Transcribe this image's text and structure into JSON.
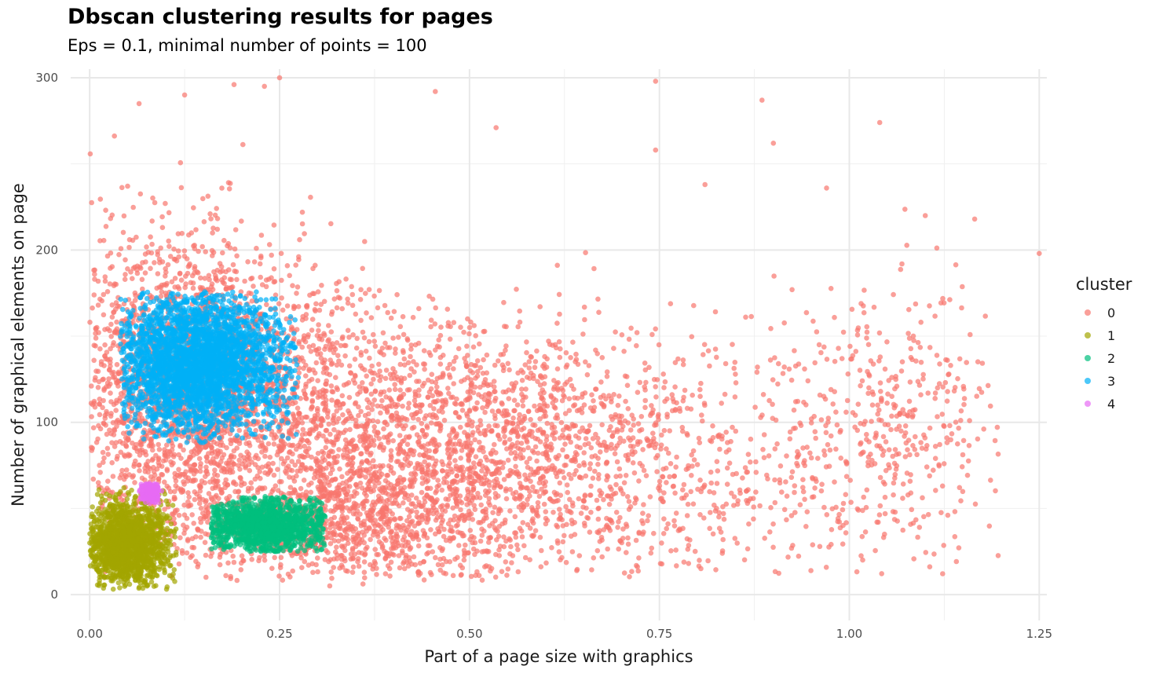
{
  "chart_data": {
    "type": "scatter",
    "title": "Dbscan clustering results for pages",
    "subtitle": "Eps = 0.1, minimal number of points = 100",
    "xlabel": "Part of a page size with graphics",
    "ylabel": "Number of graphical elements on page",
    "xlim": [
      -0.025,
      1.26
    ],
    "ylim": [
      -15,
      305
    ],
    "x_ticks": [
      0.0,
      0.25,
      0.5,
      0.75,
      1.0,
      1.25
    ],
    "x_tick_labels": [
      "0.00",
      "0.25",
      "0.50",
      "0.75",
      "1.00",
      "1.25"
    ],
    "y_ticks": [
      0,
      100,
      200,
      300
    ],
    "y_tick_labels": [
      "0",
      "100",
      "200",
      "300"
    ],
    "grid": true,
    "legend": {
      "title": "cluster",
      "position": "right"
    },
    "point_alpha": 0.7,
    "series": [
      {
        "name": "0",
        "color": "#F8766D",
        "clouds": [
          {
            "cx": 0.14,
            "cy": 120,
            "sx": 0.09,
            "sy": 42,
            "count": 2600,
            "xmin": 0.0,
            "xmax": 0.5,
            "ymin": 5,
            "ymax": 300
          },
          {
            "cx": 0.42,
            "cy": 80,
            "sx": 0.14,
            "sy": 38,
            "count": 2000,
            "xmin": 0.25,
            "xmax": 0.75,
            "ymin": 10,
            "ymax": 270
          },
          {
            "cx": 0.72,
            "cy": 75,
            "sx": 0.14,
            "sy": 40,
            "count": 750,
            "xmin": 0.5,
            "xmax": 1.0,
            "ymin": 10,
            "ymax": 255
          },
          {
            "cx": 1.05,
            "cy": 95,
            "sx": 0.08,
            "sy": 45,
            "count": 420,
            "xmin": 0.9,
            "xmax": 1.2,
            "ymin": 10,
            "ymax": 230
          },
          {
            "cx": 0.3,
            "cy": 40,
            "sx": 0.12,
            "sy": 15,
            "count": 650,
            "xmin": 0.02,
            "xmax": 0.55,
            "ymin": 5,
            "ymax": 80
          }
        ],
        "points": [
          [
            0.25,
            300
          ],
          [
            0.745,
            298
          ],
          [
            0.885,
            287
          ],
          [
            1.04,
            274
          ],
          [
            0.065,
            285
          ],
          [
            0.125,
            290
          ],
          [
            0.19,
            296
          ],
          [
            0.23,
            295
          ],
          [
            0.455,
            292
          ],
          [
            0.535,
            271
          ],
          [
            0.9,
            262
          ],
          [
            1.165,
            218
          ],
          [
            0.745,
            258
          ],
          [
            0.81,
            238
          ],
          [
            0.97,
            236
          ],
          [
            1.1,
            220
          ],
          [
            1.25,
            198
          ]
        ]
      },
      {
        "name": "1",
        "color": "#A3A500",
        "clouds": [
          {
            "cx": 0.05,
            "cy": 30,
            "sx": 0.028,
            "sy": 12,
            "count": 1600,
            "xmin": 0.0,
            "xmax": 0.115,
            "ymin": 3,
            "ymax": 62
          }
        ],
        "points": []
      },
      {
        "name": "2",
        "color": "#00BF7D",
        "clouds": [
          {
            "cx": 0.23,
            "cy": 40,
            "sx": 0.045,
            "sy": 8,
            "count": 1300,
            "xmin": 0.16,
            "xmax": 0.31,
            "ymin": 25,
            "ymax": 57
          }
        ],
        "points": []
      },
      {
        "name": "3",
        "color": "#00B0F6",
        "clouds": [
          {
            "cx": 0.145,
            "cy": 135,
            "sx": 0.055,
            "sy": 20,
            "count": 3200,
            "xmin": 0.04,
            "xmax": 0.275,
            "ymin": 88,
            "ymax": 176
          }
        ],
        "points": []
      },
      {
        "name": "4",
        "color": "#E76BF3",
        "clouds": [
          {
            "cx": 0.08,
            "cy": 59,
            "sx": 0.008,
            "sy": 3,
            "count": 160,
            "xmin": 0.065,
            "xmax": 0.1,
            "ymin": 53,
            "ymax": 65
          }
        ],
        "points": []
      }
    ]
  }
}
